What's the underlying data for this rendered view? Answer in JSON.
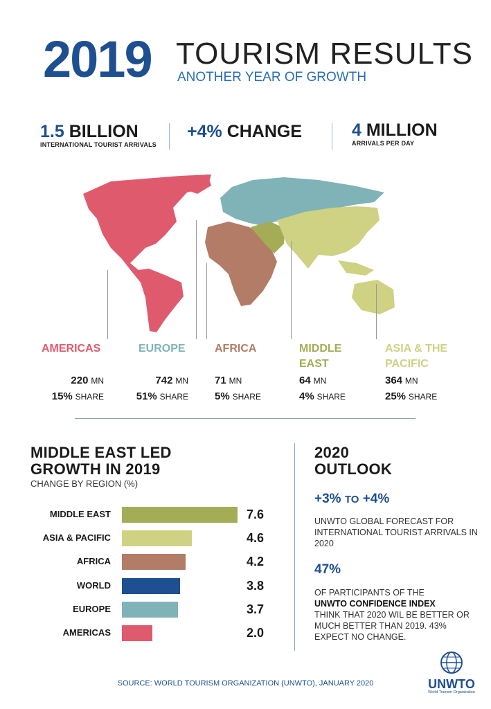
{
  "header": {
    "year": "2019",
    "title": "TOURISM RESULTS",
    "subtitle": "ANOTHER YEAR OF GROWTH"
  },
  "stats": [
    {
      "value": "1.5",
      "label": "BILLION",
      "sub": "INTERNATIONAL TOURIST ARRIVALS"
    },
    {
      "value": "+4%",
      "label": "CHANGE",
      "sub": ""
    },
    {
      "value": "4",
      "label": "MILLION",
      "sub": "ARRIVALS PER DAY"
    }
  ],
  "regions": [
    {
      "name": "AMERICAS",
      "name2": "",
      "value": "220",
      "unit": "MN",
      "share": "15%",
      "share_label": "SHARE",
      "color": "#e05a6e"
    },
    {
      "name": "EUROPE",
      "name2": "",
      "value": "742",
      "unit": "MN",
      "share": "51%",
      "share_label": "SHARE",
      "color": "#7fb3b7"
    },
    {
      "name": "AFRICA",
      "name2": "",
      "value": "71",
      "unit": "MN",
      "share": "5%",
      "share_label": "SHARE",
      "color": "#b27c66"
    },
    {
      "name": "MIDDLE",
      "name2": "EAST",
      "value": "64",
      "unit": "MN",
      "share": "4%",
      "share_label": "SHARE",
      "color": "#a4ad55"
    },
    {
      "name": "ASIA & THE",
      "name2": "PACIFIC",
      "value": "364",
      "unit": "MN",
      "share": "25%",
      "share_label": "SHARE",
      "color": "#cfd183"
    }
  ],
  "growth": {
    "title_line1": "MIDDLE EAST LED",
    "title_line2": "GROWTH IN 2019",
    "subtitle": "CHANGE BY REGION (%)"
  },
  "chart_data": {
    "type": "bar",
    "title": "MIDDLE EAST LED GROWTH IN 2019",
    "ylabel": "CHANGE BY REGION (%)",
    "categories": [
      "MIDDLE EAST",
      "ASIA & PACIFIC",
      "AFRICA",
      "WORLD",
      "EUROPE",
      "AMERICAS"
    ],
    "values": [
      7.6,
      4.6,
      4.2,
      3.8,
      3.7,
      2.0
    ],
    "value_labels": [
      "7.6",
      "4.6",
      "4.2",
      "3.8",
      "3.7",
      "2.0"
    ],
    "colors": [
      "#a4ad55",
      "#cfd183",
      "#b27c66",
      "#1d4f91",
      "#7fb3b7",
      "#e05a6e"
    ],
    "orientation": "horizontal",
    "xlim": [
      0,
      7.6
    ]
  },
  "outlook": {
    "title_line1": "2020",
    "title_line2": "OUTLOOK",
    "range_from": "+3%",
    "range_to": "TO",
    "range_end": "+4%",
    "forecast_text": "UNWTO GLOBAL FORECAST FOR INTERNATIONAL TOURIST ARRIVALS IN 2020",
    "pct": "47%",
    "conf_pre": "OF PARTICIPANTS OF THE",
    "conf_bold": "UNWTO CONFIDENCE INDEX",
    "conf_post": "THINK THAT 2020 WIL BE BETTER OR MUCH BETTER THAN 2019. 43% EXPECT NO CHANGE."
  },
  "logo": {
    "text": "UNWTO",
    "subtext": "World Tourism Organization"
  },
  "source": "SOURCE: WORLD TOURISM ORGANIZATION (UNWTO), JANUARY 2020"
}
